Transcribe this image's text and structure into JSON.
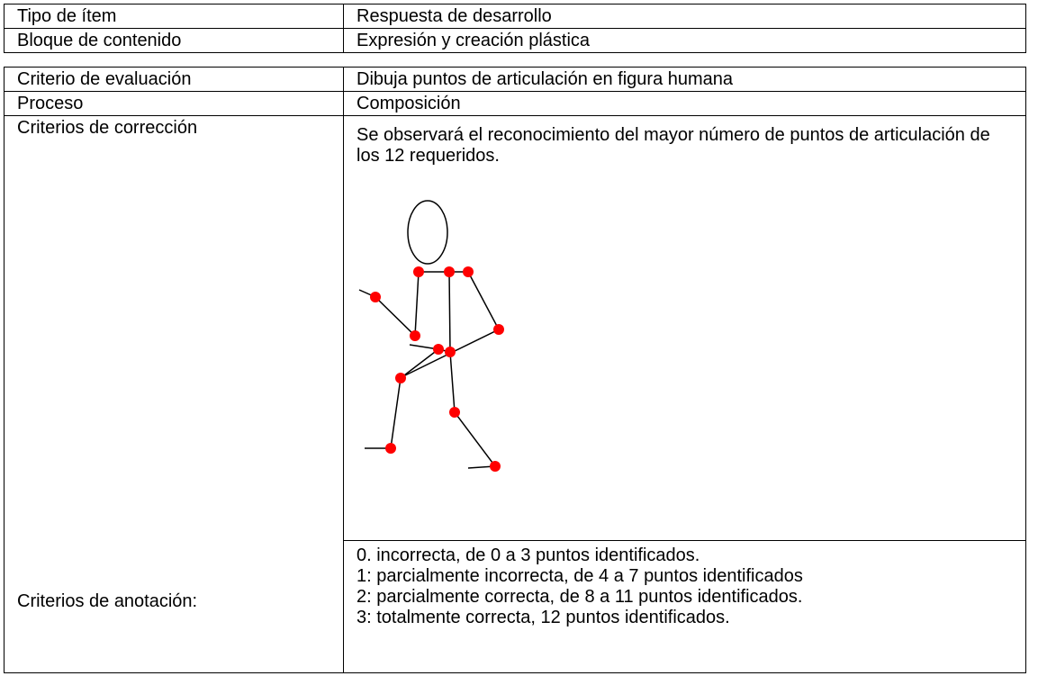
{
  "table": {
    "rows": [
      [
        "Tipo de ítem",
        "Respuesta de desarrollo"
      ],
      [
        "Bloque de contenido",
        "Expresión y creación plástica"
      ],
      [
        "Criterio de evaluación",
        "Dibuja puntos de articulación en figura humana"
      ],
      [
        "Proceso",
        "Composición"
      ],
      [
        "Criterios de corrección",
        "Se observará el reconocimiento del mayor número de puntos de articulación de los 12 requeridos."
      ]
    ],
    "annotation": {
      "label": "Criterios de anotación:",
      "items": [
        "0. incorrecta, de 0 a 3 puntos identificados.",
        "1: parcialmente incorrecta, de 4 a 7 puntos identificados",
        "2: parcialmente correcta, de 8 a 11 puntos identificados.",
        "3: totalmente correcta, 12 puntos identificados."
      ]
    }
  }
}
